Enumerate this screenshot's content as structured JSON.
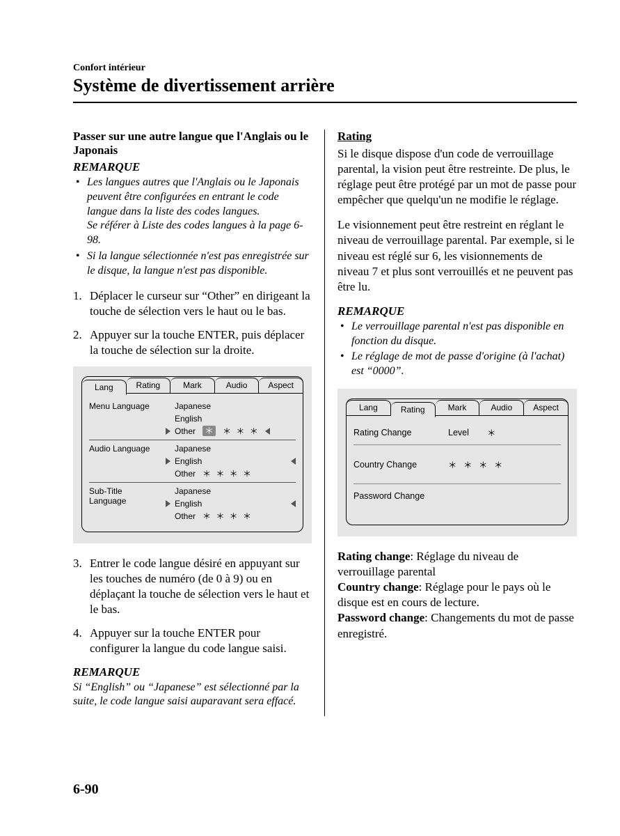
{
  "header": {
    "chapter": "Confort intérieur",
    "title": "Système de divertissement arrière"
  },
  "left": {
    "h1": "Passer sur une autre langue que l'Anglais ou le Japonais",
    "remarque": "REMARQUE",
    "notes": [
      "Les langues autres que l'Anglais ou le Japonais peuvent être configurées en entrant le code langue dans la liste des codes langues.\nSe référer à Liste des codes langues à la page 6-98.",
      "Si la langue sélectionnée n'est pas enregistrée sur le disque, la langue n'est pas disponible."
    ],
    "steps12": [
      "Déplacer le curseur sur “Other” en dirigeant la touche de sélection vers le haut ou le bas.",
      "Appuyer sur la touche ENTER, puis déplacer la touche de sélection sur la droite."
    ],
    "steps34": [
      "Entrer le code langue désiré en appuyant sur les touches de numéro (de 0 à 9) ou en déplaçant la touche de sélection vers le haut et le bas.",
      "Appuyer sur la touche ENTER pour configurer la langue du code langue saisi."
    ],
    "remarque2": "REMARQUE",
    "note2": "Si “English” ou “Japanese” est sélectionné par la suite, le code langue saisi auparavant sera effacé.",
    "ui": {
      "tabs": [
        "Lang",
        "Rating",
        "Mark",
        "Audio",
        "Aspect"
      ],
      "activeTab": 0,
      "rows": [
        {
          "label": "Menu Language",
          "opts": [
            "Japanese",
            "English",
            "Other"
          ],
          "sel": 2,
          "codeHighlighted": true
        },
        {
          "label": "Audio Language",
          "opts": [
            "Japanese",
            "English",
            "Other"
          ],
          "sel": 1,
          "extraStarsAfter": "Other"
        },
        {
          "label": "Sub-Title Language",
          "opts": [
            "Japanese",
            "English",
            "Other"
          ],
          "sel": 1,
          "extraStarsAfter": "Other"
        }
      ],
      "stars": "＊ ＊ ＊ ＊"
    }
  },
  "right": {
    "h1": "Rating",
    "p1": "Si le disque dispose d'un code de verrouillage parental, la vision peut être restreinte. De plus, le réglage peut être protégé par un mot de passe pour empêcher que quelqu'un ne modifie le réglage.",
    "p2": "Le visionnement peut être restreint en réglant le niveau de verrouillage parental. Par exemple, si le niveau est réglé sur 6, les visionnements de niveau 7 et plus sont verrouillés et ne peuvent pas être lu.",
    "remarque": "REMARQUE",
    "notes": [
      "Le verrouillage parental n'est pas disponible en fonction du disque.",
      "Le réglage de mot de passe d'origine (à l'achat) est “0000”."
    ],
    "ui": {
      "tabs": [
        "Lang",
        "Rating",
        "Mark",
        "Audio",
        "Aspect"
      ],
      "activeTab": 1,
      "lines": [
        {
          "label": "Rating  Change",
          "mid": "Level",
          "val": "＊"
        },
        {
          "label": "Country  Change",
          "mid": "",
          "val": "＊ ＊ ＊ ＊"
        },
        {
          "label": "Password  Change",
          "mid": "",
          "val": ""
        }
      ]
    },
    "defs": [
      {
        "term": "Rating change",
        "desc": ": Réglage du niveau de verrouillage parental"
      },
      {
        "term": "Country change",
        "desc": ": Réglage pour le pays où le disque est en cours de lecture."
      },
      {
        "term": "Password change",
        "desc": ": Changements du mot de passe enregistré."
      }
    ]
  },
  "pageNumber": "6-90"
}
